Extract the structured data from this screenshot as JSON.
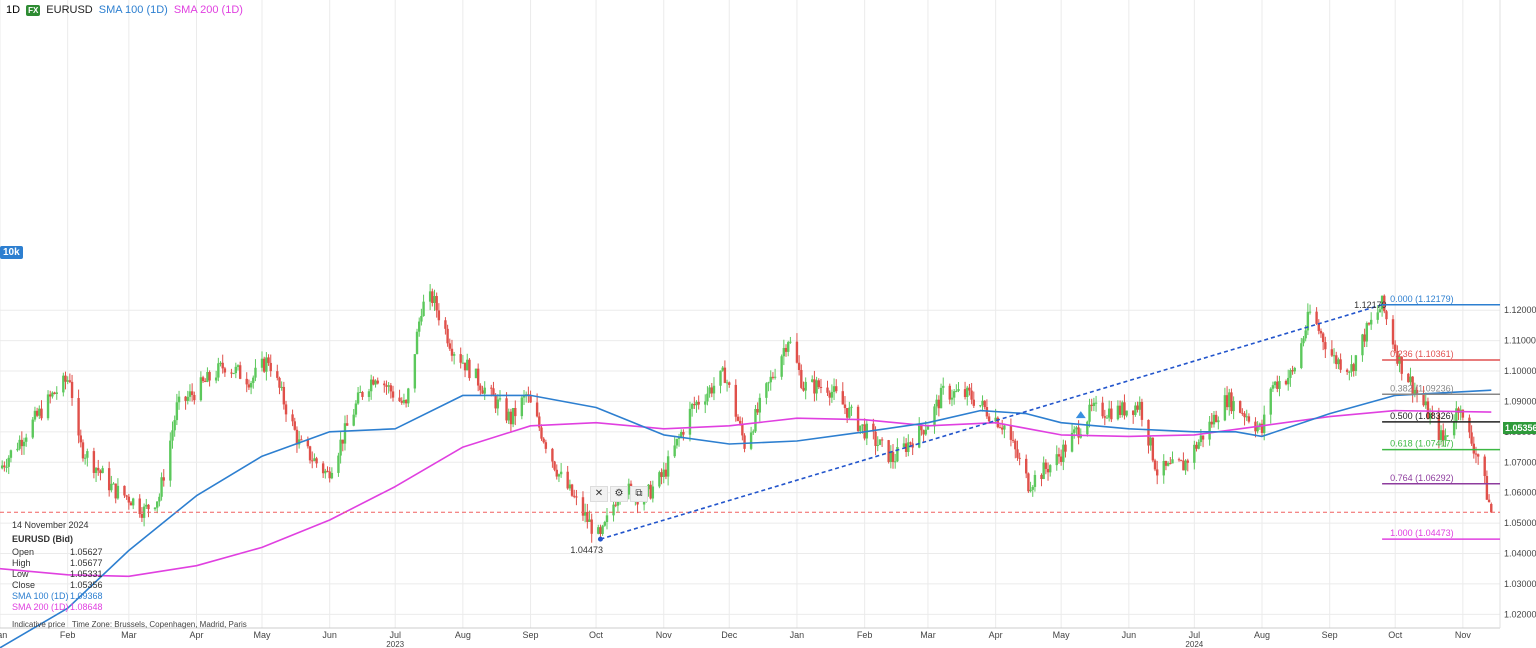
{
  "header": {
    "timeframe": "1D",
    "fx_badge": "FX",
    "symbol": "EURUSD",
    "sma100_label": "SMA 100 (1D)",
    "sma200_label": "SMA 200 (1D)",
    "left_badge": "10k"
  },
  "colors": {
    "up": "#5cc85c",
    "down": "#e0504a",
    "sma100": "#2d7fd0",
    "sma200": "#e040e0",
    "trendline": "#2255cc",
    "current_price_line": "#f06060"
  },
  "info_box": {
    "date": "14 November 2024",
    "symbol": "EURUSD (Bid)",
    "rows": [
      {
        "label": "Open",
        "value": "1.05627"
      },
      {
        "label": "High",
        "value": "1.05677"
      },
      {
        "label": "Low",
        "value": "1.05331"
      },
      {
        "label": "Close",
        "value": "1.05356"
      },
      {
        "label": "SMA 100 (1D)",
        "value": "1.09368"
      },
      {
        "label": "SMA 200 (1D)",
        "value": "1.08648"
      }
    ]
  },
  "footer": {
    "indicative": "Indicative price",
    "timezone": "Time Zone: Brussels, Copenhagen, Madrid, Paris"
  },
  "toolbox": {
    "close": "✕",
    "settings": "⚙",
    "copy": "⧉"
  },
  "chart_data": {
    "type": "line",
    "title": "",
    "xlabel": "",
    "ylabel": "",
    "ylim": [
      1.0155,
      1.222
    ],
    "y_ticks": [
      1.02,
      1.03,
      1.04,
      1.05,
      1.06,
      1.07,
      1.08,
      1.09,
      1.1,
      1.11,
      1.12
    ],
    "y_tick_labels": [
      "1.02000",
      "1.03000",
      "1.04000",
      "1.05000",
      "1.06000",
      "1.07000",
      "1.08000",
      "1.09000",
      "1.10000",
      "1.11000",
      "1.12000"
    ],
    "x_range": [
      "2023-01-01",
      "2024-11-18"
    ],
    "x_ticks": [
      {
        "date": "2023-01-01",
        "label": "Jan"
      },
      {
        "date": "2023-02-01",
        "label": "Feb"
      },
      {
        "date": "2023-03-01",
        "label": "Mar"
      },
      {
        "date": "2023-04-01",
        "label": "Apr"
      },
      {
        "date": "2023-05-01",
        "label": "May"
      },
      {
        "date": "2023-06-01",
        "label": "Jun"
      },
      {
        "date": "2023-07-01",
        "label": "Jul"
      },
      {
        "date": "2023-08-01",
        "label": "Aug"
      },
      {
        "date": "2023-09-01",
        "label": "Sep"
      },
      {
        "date": "2023-10-01",
        "label": "Oct"
      },
      {
        "date": "2023-11-01",
        "label": "Nov"
      },
      {
        "date": "2023-12-01",
        "label": "Dec"
      },
      {
        "date": "2024-01-01",
        "label": "Jan"
      },
      {
        "date": "2024-02-01",
        "label": "Feb"
      },
      {
        "date": "2024-03-01",
        "label": "Mar"
      },
      {
        "date": "2024-04-01",
        "label": "Apr"
      },
      {
        "date": "2024-05-01",
        "label": "May"
      },
      {
        "date": "2024-06-01",
        "label": "Jun"
      },
      {
        "date": "2024-07-01",
        "label": "Jul"
      },
      {
        "date": "2024-08-01",
        "label": "Aug"
      },
      {
        "date": "2024-09-01",
        "label": "Sep"
      },
      {
        "date": "2024-10-01",
        "label": "Oct"
      },
      {
        "date": "2024-11-01",
        "label": "Nov"
      }
    ],
    "year_labels": [
      {
        "date": "2023-07-01",
        "label": "2023"
      },
      {
        "date": "2024-07-01",
        "label": "2024"
      }
    ],
    "price_path": [
      [
        "2023-01-01",
        1.068
      ],
      [
        "2023-01-25",
        1.092
      ],
      [
        "2023-02-02",
        1.098
      ],
      [
        "2023-02-06",
        1.076
      ],
      [
        "2023-02-22",
        1.061
      ],
      [
        "2023-03-02",
        1.058
      ],
      [
        "2023-03-08",
        1.054
      ],
      [
        "2023-03-15",
        1.059
      ],
      [
        "2023-03-23",
        1.088
      ],
      [
        "2023-04-14",
        1.102
      ],
      [
        "2023-04-26",
        1.097
      ],
      [
        "2023-05-04",
        1.104
      ],
      [
        "2023-05-18",
        1.076
      ],
      [
        "2023-05-31",
        1.066
      ],
      [
        "2023-06-15",
        1.092
      ],
      [
        "2023-06-22",
        1.099
      ],
      [
        "2023-07-06",
        1.088
      ],
      [
        "2023-07-13",
        1.121
      ],
      [
        "2023-07-18",
        1.124
      ],
      [
        "2023-07-27",
        1.108
      ],
      [
        "2023-08-10",
        1.095
      ],
      [
        "2023-08-23",
        1.084
      ],
      [
        "2023-08-30",
        1.092
      ],
      [
        "2023-09-14",
        1.066
      ],
      [
        "2023-09-27",
        1.051
      ],
      [
        "2023-10-03",
        1.0447
      ],
      [
        "2023-10-12",
        1.062
      ],
      [
        "2023-10-23",
        1.058
      ],
      [
        "2023-11-01",
        1.066
      ],
      [
        "2023-11-14",
        1.088
      ],
      [
        "2023-11-29",
        1.099
      ],
      [
        "2023-12-08",
        1.076
      ],
      [
        "2023-12-20",
        1.097
      ],
      [
        "2023-12-28",
        1.111
      ],
      [
        "2024-01-04",
        1.095
      ],
      [
        "2024-01-15",
        1.095
      ],
      [
        "2024-01-30",
        1.082
      ],
      [
        "2024-02-14",
        1.071
      ],
      [
        "2024-03-01",
        1.083
      ],
      [
        "2024-03-08",
        1.093
      ],
      [
        "2024-03-20",
        1.092
      ],
      [
        "2024-04-05",
        1.082
      ],
      [
        "2024-04-16",
        1.063
      ],
      [
        "2024-04-29",
        1.071
      ],
      [
        "2024-05-15",
        1.087
      ],
      [
        "2024-05-28",
        1.087
      ],
      [
        "2024-06-06",
        1.089
      ],
      [
        "2024-06-14",
        1.067
      ],
      [
        "2024-06-26",
        1.069
      ],
      [
        "2024-07-16",
        1.091
      ],
      [
        "2024-07-26",
        1.085
      ],
      [
        "2024-08-01",
        1.08
      ],
      [
        "2024-08-05",
        1.095
      ],
      [
        "2024-08-15",
        1.099
      ],
      [
        "2024-08-23",
        1.119
      ],
      [
        "2024-09-03",
        1.104
      ],
      [
        "2024-09-11",
        1.101
      ],
      [
        "2024-09-17",
        1.112
      ],
      [
        "2024-09-25",
        1.1218
      ],
      [
        "2024-10-03",
        1.103
      ],
      [
        "2024-10-23",
        1.077
      ],
      [
        "2024-10-31",
        1.09
      ],
      [
        "2024-11-01",
        1.083
      ],
      [
        "2024-11-08",
        1.072
      ],
      [
        "2024-11-14",
        1.0536
      ]
    ],
    "sma100": [
      [
        "2023-01-01",
        1.009
      ],
      [
        "2023-02-01",
        1.022
      ],
      [
        "2023-03-01",
        1.041
      ],
      [
        "2023-04-01",
        1.059
      ],
      [
        "2023-05-01",
        1.072
      ],
      [
        "2023-06-01",
        1.08
      ],
      [
        "2023-07-01",
        1.081
      ],
      [
        "2023-08-01",
        1.092
      ],
      [
        "2023-09-01",
        1.092
      ],
      [
        "2023-10-01",
        1.088
      ],
      [
        "2023-11-01",
        1.079
      ],
      [
        "2023-12-01",
        1.076
      ],
      [
        "2024-01-01",
        1.077
      ],
      [
        "2024-02-01",
        1.08
      ],
      [
        "2024-03-01",
        1.083
      ],
      [
        "2024-03-25",
        1.087
      ],
      [
        "2024-04-15",
        1.086
      ],
      [
        "2024-05-01",
        1.083
      ],
      [
        "2024-06-01",
        1.081
      ],
      [
        "2024-07-01",
        1.08
      ],
      [
        "2024-07-20",
        1.08
      ],
      [
        "2024-08-01",
        1.0785
      ],
      [
        "2024-09-01",
        1.086
      ],
      [
        "2024-10-01",
        1.092
      ],
      [
        "2024-11-14",
        1.0937
      ]
    ],
    "sma200": [
      [
        "2023-01-01",
        1.035
      ],
      [
        "2023-02-01",
        1.033
      ],
      [
        "2023-03-01",
        1.0325
      ],
      [
        "2023-04-01",
        1.036
      ],
      [
        "2023-05-01",
        1.042
      ],
      [
        "2023-06-01",
        1.051
      ],
      [
        "2023-07-01",
        1.062
      ],
      [
        "2023-08-01",
        1.075
      ],
      [
        "2023-09-01",
        1.082
      ],
      [
        "2023-10-01",
        1.083
      ],
      [
        "2023-11-01",
        1.081
      ],
      [
        "2023-12-01",
        1.082
      ],
      [
        "2024-01-01",
        1.0845
      ],
      [
        "2024-02-01",
        1.084
      ],
      [
        "2024-03-01",
        1.082
      ],
      [
        "2024-04-01",
        1.083
      ],
      [
        "2024-05-01",
        1.079
      ],
      [
        "2024-06-01",
        1.0785
      ],
      [
        "2024-07-01",
        1.079
      ],
      [
        "2024-08-01",
        1.082
      ],
      [
        "2024-09-01",
        1.085
      ],
      [
        "2024-10-01",
        1.087
      ],
      [
        "2024-11-14",
        1.0865
      ]
    ],
    "fib_anchor": "2024-09-25",
    "fib_levels": [
      {
        "label": "0.000 (1.12179)",
        "value": 1.12179,
        "color": "#2d7fd0"
      },
      {
        "label": "0.236 (1.10361)",
        "value": 1.10361,
        "color": "#e05050"
      },
      {
        "label": "0.382 (1.09236)",
        "value": 1.09236,
        "color": "#888888"
      },
      {
        "label": "0.500 (1.08326)",
        "value": 1.08326,
        "color": "#222222"
      },
      {
        "label": "0.618 (1.07417)",
        "value": 1.07417,
        "color": "#3cb843"
      },
      {
        "label": "0.764 (1.06292)",
        "value": 1.06292,
        "color": "#8e3c9e"
      },
      {
        "label": "1.000 (1.04473)",
        "value": 1.04473,
        "color": "#e040e0"
      }
    ],
    "trendline": {
      "start": {
        "date": "2023-10-03",
        "value": 1.04473,
        "label": "1.04473"
      },
      "end": {
        "date": "2024-09-25",
        "value": 1.12179,
        "label": "1.12179"
      }
    },
    "current_price": {
      "value": 1.05356,
      "label": "1.05356"
    },
    "marker": {
      "date": "2024-05-10",
      "value": 1.0855
    }
  }
}
